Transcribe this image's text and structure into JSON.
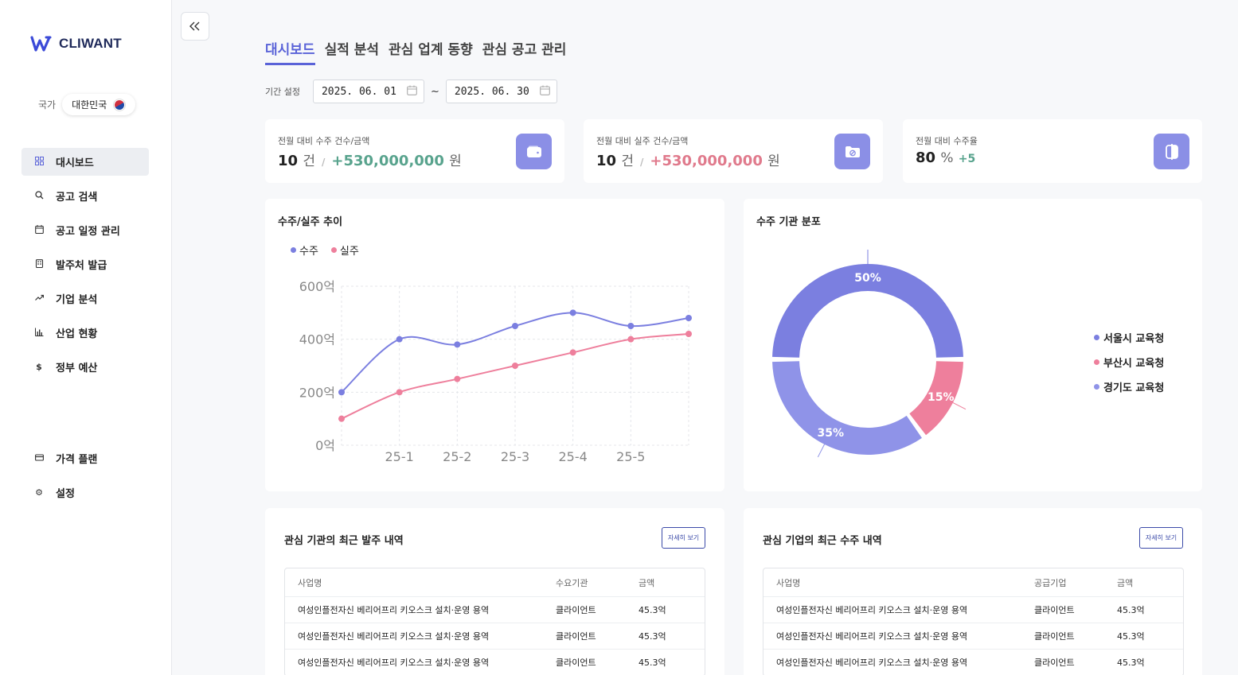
{
  "app": {
    "logo_text": "CLIWANT"
  },
  "country": {
    "label": "국가",
    "value": "대한민국"
  },
  "sidebar": {
    "items": [
      {
        "label": "대시보드",
        "icon": "grid-icon"
      },
      {
        "label": "공고 검색",
        "icon": "search-icon"
      },
      {
        "label": "공고 일정 관리",
        "icon": "calendar-icon"
      },
      {
        "label": "발주처 발급",
        "icon": "building-icon"
      },
      {
        "label": "기업 분석",
        "icon": "trend-icon"
      },
      {
        "label": "산업 현황",
        "icon": "bar-chart-icon"
      },
      {
        "label": "정부 예산",
        "icon": "dollar-icon"
      }
    ],
    "bottom_items": [
      {
        "label": "가격 플랜",
        "icon": "card-icon"
      },
      {
        "label": "설정",
        "icon": "gear-icon"
      }
    ]
  },
  "tabs": [
    "대시보드",
    "실적 분석",
    "관심 업계 동향",
    "관심 공고 관리"
  ],
  "period": {
    "label": "기간 설정",
    "start": "2025. 06. 01",
    "end": "2025. 06. 30",
    "separator": "~"
  },
  "stats": [
    {
      "title": "전월 대비 수주 건수/금액",
      "count": "10",
      "count_unit": "건",
      "sep": "/",
      "amount": "+530,000,000",
      "amount_unit": "원"
    },
    {
      "title": "전월 대비 실주 건수/금액",
      "count": "10",
      "count_unit": "건",
      "sep": "/",
      "amount": "+530,000,000",
      "amount_unit": "원"
    },
    {
      "title": "전월 대비 수주율",
      "rate": "80",
      "rate_unit": "%",
      "delta": "+5"
    }
  ],
  "colors": {
    "accent": "#5a63d8",
    "win": "#7b7fe0",
    "loss": "#ee7f9c",
    "third": "#8f93e8",
    "positive": "#58a38d"
  },
  "line_chart": {
    "title": "수주/실주 추이",
    "chart_data": {
      "type": "line",
      "categories": [
        "25-1",
        "25-2",
        "25-3",
        "25-4",
        "25-5"
      ],
      "y_tick_labels": [
        "600억",
        "400억",
        "200억",
        "0억"
      ],
      "y_ticks": [
        600,
        400,
        200,
        0
      ],
      "ylim": [
        0,
        600
      ],
      "x": [
        0,
        1,
        2,
        3,
        4,
        5,
        6
      ],
      "series": [
        {
          "name": "수주",
          "values": [
            200,
            400,
            380,
            450,
            500,
            450,
            480
          ]
        },
        {
          "name": "실주",
          "values": [
            100,
            200,
            250,
            300,
            350,
            400,
            420
          ]
        }
      ],
      "grid": true,
      "legend": "top-left"
    }
  },
  "pie_chart": {
    "title": "수주 기관 분포",
    "chart_data": {
      "type": "pie",
      "categories": [
        "서울시 교육청",
        "부산시 교육청",
        "경기도 교육청"
      ],
      "values": [
        50,
        15,
        35
      ],
      "labels": [
        "50%",
        "15%",
        "35%"
      ],
      "legend": "right"
    }
  },
  "tables": [
    {
      "title": "관심 기관의 최근 발주 내역",
      "button": "자세히 보기",
      "headers": [
        "사업명",
        "수요기관",
        "금액"
      ],
      "rows": [
        [
          "여성인플전자신 베리어프리 키오스크 설치·운영 용역",
          "클라이언트",
          "45.3억"
        ],
        [
          "여성인플전자신 베리어프리 키오스크 설치·운영 용역",
          "클라이언트",
          "45.3억"
        ],
        [
          "여성인플전자신 베리어프리 키오스크 설치·운영 용역",
          "클라이언트",
          "45.3억"
        ]
      ]
    },
    {
      "title": "관심 기업의 최근 수주 내역",
      "button": "자세히 보기",
      "headers": [
        "사업명",
        "공급기업",
        "금액"
      ],
      "rows": [
        [
          "여성인플전자신 베리어프리 키오스크 설치·운영 용역",
          "클라이언트",
          "45.3억"
        ],
        [
          "여성인플전자신 베리어프리 키오스크 설치·운영 용역",
          "클라이언트",
          "45.3억"
        ],
        [
          "여성인플전자신 베리어프리 키오스크 설치·운영 용역",
          "클라이언트",
          "45.3억"
        ]
      ]
    }
  ]
}
